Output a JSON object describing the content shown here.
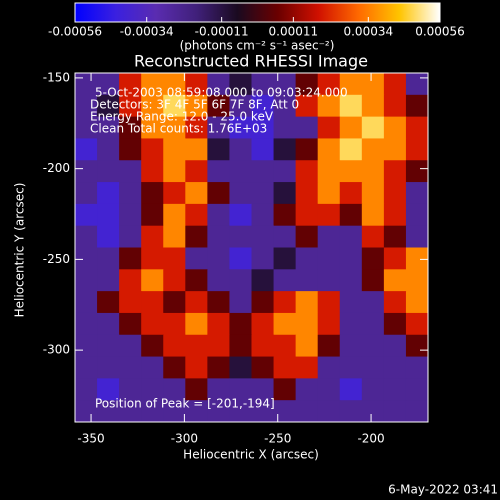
{
  "chart_data": {
    "type": "heatmap",
    "title": "Reconstructed RHESSI Image",
    "colorbar_label": "(photons cm⁻² s⁻¹ asec⁻²)",
    "zlim": [
      -0.00056,
      0.00056
    ],
    "cticks": [
      -0.00056,
      -0.00034,
      -0.00011,
      0.00011,
      0.00034,
      0.00056
    ],
    "colorscale": [
      "#0000ff",
      "#3a20e0",
      "#5a2cb0",
      "#40207a",
      "#1a0a20",
      "#6a0000",
      "#d01000",
      "#ff6a00",
      "#ffc400",
      "#ffffff"
    ],
    "x_label": "Heliocentric X (arcsec)",
    "y_label": "Heliocentric Y (arcsec)",
    "xlim": [
      -358.6,
      -169.5
    ],
    "xticks": [
      -350,
      -300,
      -250,
      -200
    ],
    "ylim": [
      -339.6,
      -147.3
    ],
    "yticks": [
      -300,
      -250,
      -200,
      -150
    ],
    "annotations": [
      "5-Oct-2003 08:59:08.000 to 09:03:24.000",
      "Detectors: 3F 4F 5F 6F 7F 8F, Att 0",
      "Energy Range: 12.0 - 25.0 keV",
      "Clean    Total counts: 1.76E+03"
    ],
    "peak_label": "Position of Peak = [-201,-194]",
    "timestamp": "6-May-2022 03:41",
    "z": [
      [
        -0.00025,
        -0.00025,
        0.0002,
        0.00035,
        0.00035,
        0.0002,
        -0.00025,
        -0.0001,
        -0.00025,
        -0.00025,
        5e-05,
        0.0002,
        0.00035,
        0.00035,
        0.0002,
        -0.00025
      ],
      [
        -0.00025,
        -0.0001,
        0.0002,
        0.00035,
        0.00048,
        0.00035,
        5e-05,
        -0.00025,
        -0.0004,
        -0.00025,
        0.0002,
        0.00035,
        0.00048,
        0.00035,
        0.0002,
        5e-05
      ],
      [
        -0.00025,
        -0.00025,
        5e-05,
        0.00035,
        0.00035,
        0.0002,
        -0.00025,
        -0.0004,
        -0.0004,
        -0.00025,
        -0.00025,
        0.0002,
        0.00035,
        0.00048,
        0.00035,
        0.0002
      ],
      [
        -0.0004,
        -0.00025,
        5e-05,
        0.0002,
        0.00035,
        0.00035,
        -0.0001,
        -0.00025,
        -0.0004,
        -0.0001,
        5e-05,
        0.00035,
        0.00048,
        0.00035,
        0.00035,
        0.0002
      ],
      [
        -0.00025,
        -0.00025,
        -0.00025,
        0.0002,
        0.00035,
        0.0002,
        -0.00025,
        -0.00025,
        -0.00025,
        -0.00025,
        0.0002,
        0.00035,
        0.00035,
        0.00035,
        0.0002,
        5e-05
      ],
      [
        -0.00025,
        -0.0004,
        -0.00025,
        5e-05,
        0.0002,
        0.00035,
        5e-05,
        -0.00025,
        -0.00025,
        -0.0001,
        0.0002,
        0.00035,
        0.0002,
        0.00035,
        0.0002,
        -0.00025
      ],
      [
        -0.0004,
        -0.0004,
        -0.00025,
        5e-05,
        0.00035,
        0.0002,
        -0.00025,
        -0.0004,
        -0.00025,
        5e-05,
        0.0002,
        0.0002,
        5e-05,
        0.00035,
        0.0002,
        -0.00025
      ],
      [
        -0.00025,
        -0.0004,
        -0.00025,
        0.0002,
        0.00035,
        5e-05,
        -0.00025,
        -0.00025,
        -0.00025,
        -0.00025,
        5e-05,
        -0.00025,
        -0.00025,
        0.0002,
        5e-05,
        -0.00025
      ],
      [
        -0.00025,
        -0.00025,
        5e-05,
        0.0002,
        0.0002,
        -0.00025,
        -0.00025,
        -0.0004,
        -0.00025,
        -0.0001,
        -0.00025,
        -0.00025,
        -0.00025,
        5e-05,
        0.0002,
        0.00035
      ],
      [
        -0.00025,
        -0.00025,
        0.0002,
        0.00035,
        0.0002,
        5e-05,
        -0.00025,
        -0.00025,
        -0.0001,
        -0.00025,
        -0.00025,
        -0.00025,
        -0.00025,
        5e-05,
        0.00035,
        0.00035
      ],
      [
        -0.00025,
        5e-05,
        0.0002,
        0.0002,
        5e-05,
        0.0002,
        5e-05,
        -0.00025,
        5e-05,
        0.0002,
        0.00035,
        0.0002,
        -0.00025,
        -0.00025,
        0.0002,
        0.00035
      ],
      [
        -0.00025,
        -0.00025,
        5e-05,
        0.0002,
        0.0002,
        0.00035,
        0.0002,
        5e-05,
        0.0002,
        0.00035,
        0.00035,
        0.0002,
        -0.00025,
        -0.00025,
        5e-05,
        0.0002
      ],
      [
        -0.00025,
        -0.00025,
        -0.00025,
        5e-05,
        0.0002,
        0.0002,
        0.0002,
        5e-05,
        0.0002,
        0.0002,
        0.00035,
        5e-05,
        -0.00025,
        -0.00025,
        -0.00025,
        5e-05
      ],
      [
        -0.00025,
        -0.00025,
        -0.00025,
        -0.00025,
        5e-05,
        0.0002,
        5e-05,
        -0.0001,
        5e-05,
        0.0002,
        0.0002,
        -0.00025,
        -0.00025,
        -0.00025,
        -0.00025,
        -0.00025
      ],
      [
        -0.00025,
        -0.0004,
        -0.00025,
        -0.00025,
        -0.00025,
        5e-05,
        -0.00025,
        -0.00025,
        -0.00025,
        5e-05,
        -0.00025,
        -0.00025,
        -0.0004,
        -0.00025,
        -0.00025,
        -0.00025
      ],
      [
        -0.00025,
        -0.00025,
        -0.00025,
        -0.00025,
        -0.00025,
        -0.00025,
        -0.00025,
        -0.00025,
        -0.00025,
        -0.00025,
        -0.00025,
        -0.00025,
        -0.00025,
        -0.00025,
        -0.00025,
        -0.00025
      ]
    ]
  }
}
